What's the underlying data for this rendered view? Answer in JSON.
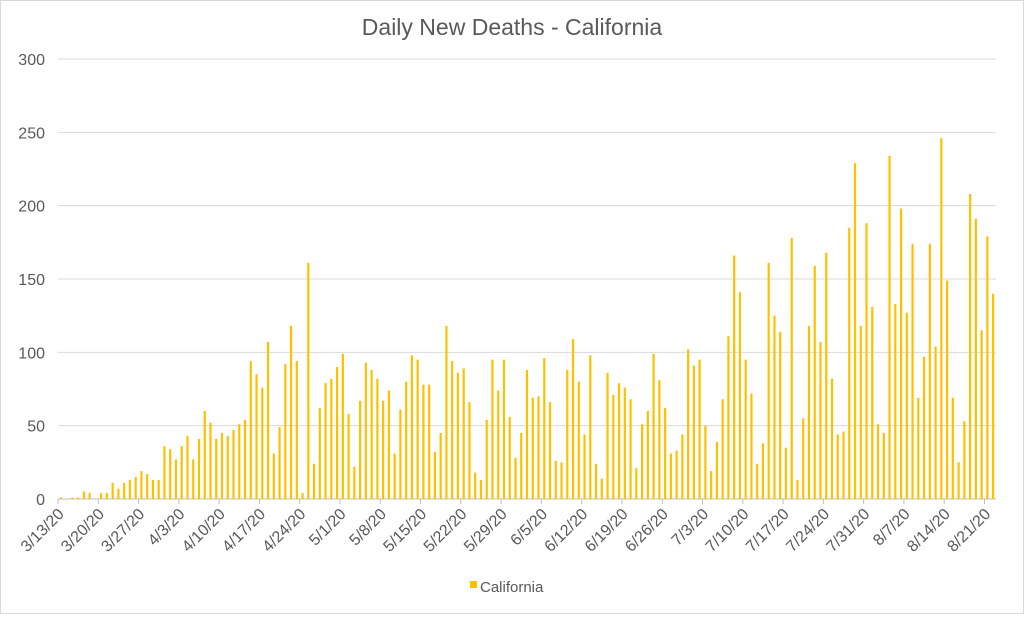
{
  "chart_data": {
    "type": "bar",
    "title": "Daily New Deaths - California",
    "xlabel": "",
    "ylabel": "",
    "ylim": [
      0,
      300
    ],
    "yticks": [
      "0",
      "50",
      "100",
      "150",
      "200",
      "250",
      "300"
    ],
    "grid": true,
    "legend_position": "bottom",
    "color": "#FFC000",
    "start_date": "3/13/20",
    "xtick_labels": [
      "3/13/20",
      "3/20/20",
      "3/27/20",
      "4/3/20",
      "4/10/20",
      "4/17/20",
      "4/24/20",
      "5/1/20",
      "5/8/20",
      "5/15/20",
      "5/22/20",
      "5/29/20",
      "6/5/20",
      "6/12/20",
      "6/19/20",
      "6/26/20",
      "7/3/20",
      "7/10/20",
      "7/17/20",
      "7/24/20",
      "7/31/20",
      "8/7/20",
      "8/14/20",
      "8/21/20"
    ],
    "series": [
      {
        "name": "California",
        "values": [
          1,
          0,
          1,
          1,
          5,
          4,
          0,
          4,
          4,
          11,
          7,
          11,
          13,
          15,
          19,
          17,
          13,
          13,
          36,
          34,
          27,
          36,
          43,
          27,
          41,
          60,
          52,
          41,
          45,
          43,
          47,
          51,
          54,
          94,
          85,
          76,
          107,
          31,
          49,
          92,
          118,
          94,
          4,
          161,
          24,
          62,
          79,
          82,
          90,
          99,
          58,
          22,
          67,
          93,
          88,
          82,
          67,
          74,
          31,
          61,
          80,
          98,
          95,
          78,
          78,
          32,
          45,
          118,
          94,
          86,
          89,
          66,
          18,
          13,
          54,
          95,
          74,
          95,
          56,
          28,
          45,
          88,
          69,
          70,
          96,
          66,
          26,
          25,
          88,
          109,
          80,
          44,
          98,
          24,
          14,
          86,
          71,
          79,
          76,
          68,
          21,
          51,
          60,
          99,
          81,
          62,
          31,
          33,
          44,
          102,
          91,
          95,
          50,
          19,
          39,
          68,
          111,
          166,
          141,
          95,
          72,
          24,
          38,
          161,
          125,
          114,
          35,
          178,
          13,
          55,
          118,
          159,
          107,
          168,
          82,
          44,
          46,
          185,
          229,
          118,
          188,
          131,
          51,
          45,
          234,
          133,
          198,
          127,
          174,
          69,
          97,
          174,
          104,
          246,
          149,
          69,
          25,
          53,
          208,
          191,
          115,
          179,
          140
        ]
      }
    ]
  }
}
